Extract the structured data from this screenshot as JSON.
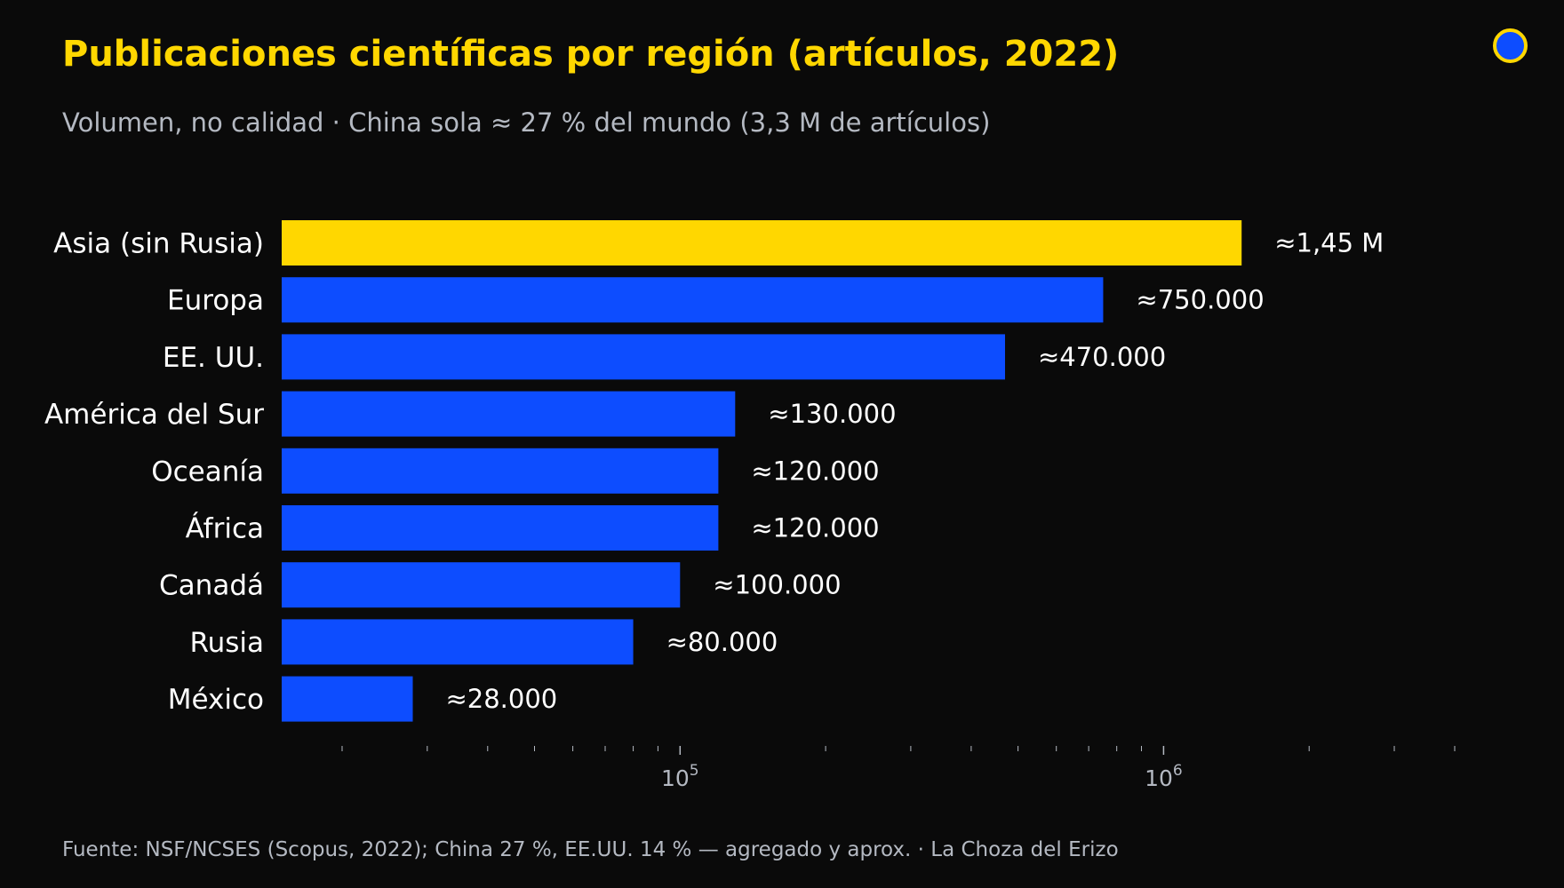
{
  "title": "Publicaciones científicas por región (artículos, 2022)",
  "subtitle": "Volumen, no calidad · China sola ≈ 27 % del mundo (3,3 M de artículos)",
  "source": "Fuente: NSF/NCSES (Scopus, 2022); China 27 %, EE.UU. 14 % — agregado y aprox.  ·  La Choza del Erizo",
  "colors": {
    "background": "#0a0a0a",
    "highlight": "#FFD700",
    "bar": "#0d4dff",
    "text": "#ffffff",
    "muted": "#b4b9c2"
  },
  "logo": "circle-logo-icon",
  "chart_data": {
    "type": "bar",
    "orientation": "horizontal",
    "scale": "log",
    "xlim": [
      15000,
      4000000
    ],
    "categories": [
      "Asia (sin Rusia)",
      "Europa",
      "EE. UU.",
      "América del Sur",
      "Oceanía",
      "África",
      "Canadá",
      "Rusia",
      "México"
    ],
    "values": [
      1450000,
      750000,
      470000,
      130000,
      120000,
      120000,
      100000,
      80000,
      28000
    ],
    "value_labels": [
      "≈1,45 M",
      "≈750.000",
      "≈470.000",
      "≈130.000",
      "≈120.000",
      "≈120.000",
      "≈100.000",
      "≈80.000",
      "≈28.000"
    ],
    "highlight_index": 0,
    "major_ticks": [
      {
        "value": 100000,
        "base": "10",
        "exp": "5"
      },
      {
        "value": 1000000,
        "base": "10",
        "exp": "6"
      }
    ],
    "grid": false
  }
}
